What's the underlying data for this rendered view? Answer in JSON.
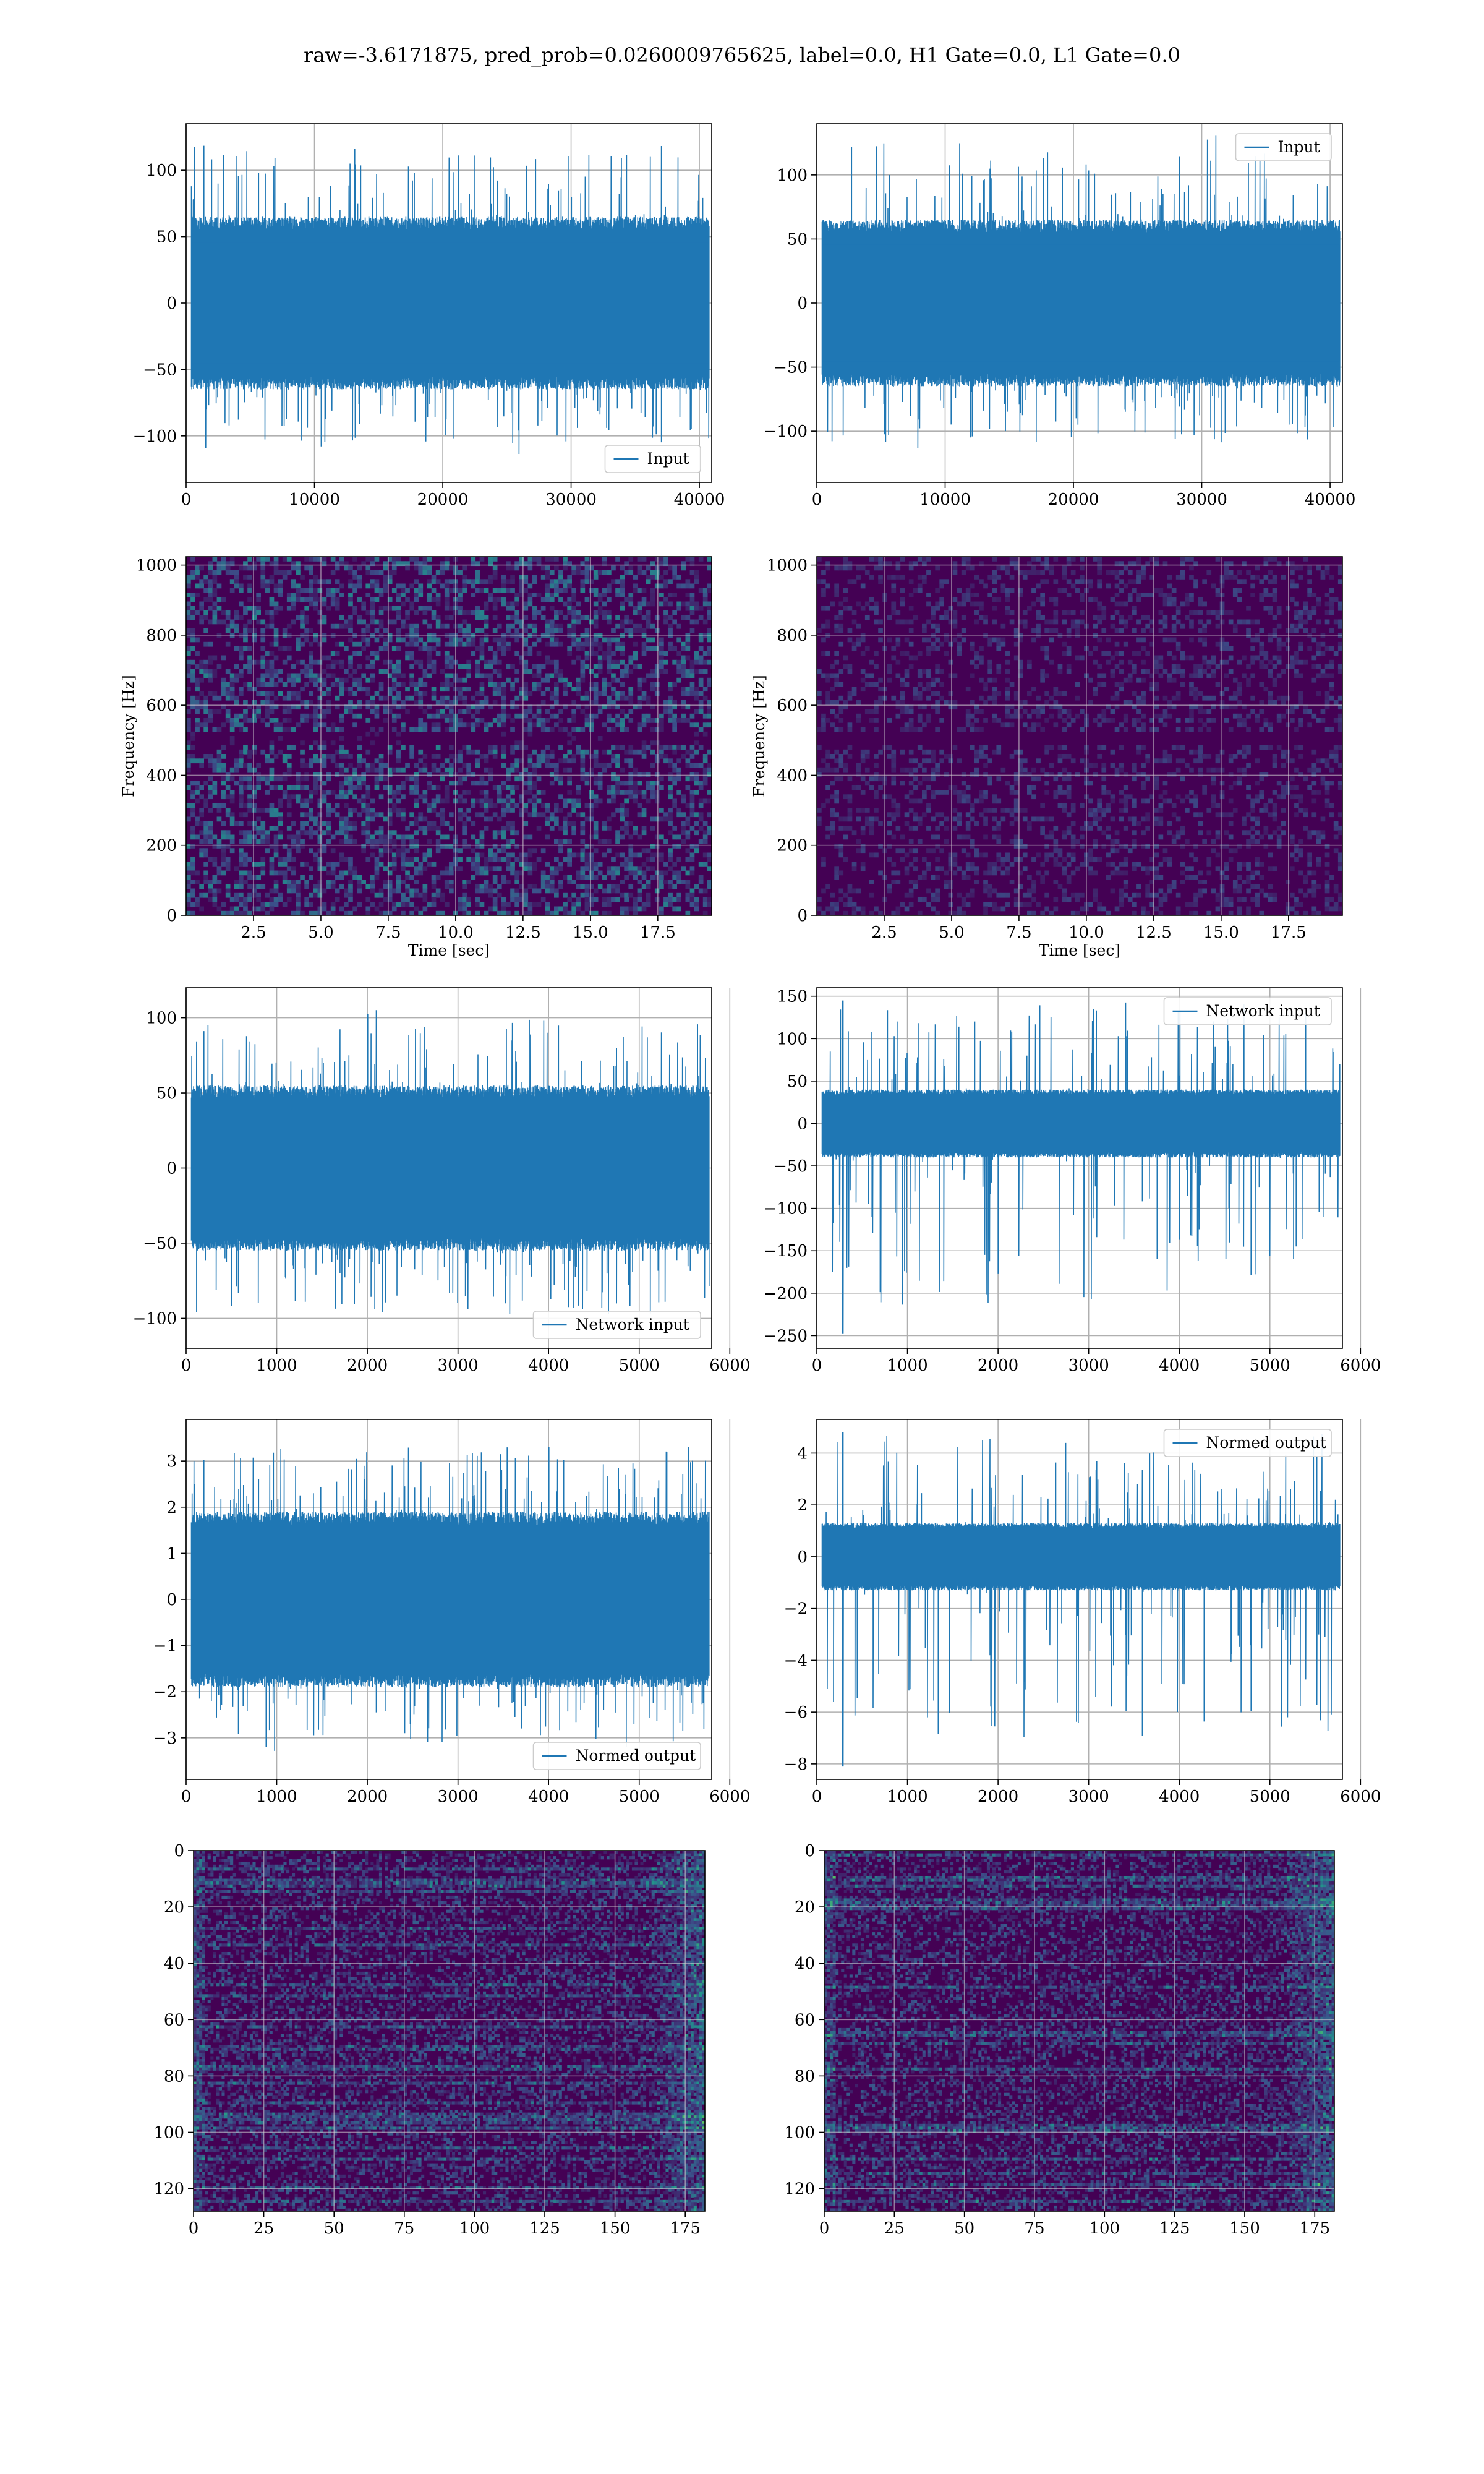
{
  "suptitle": "raw=-3.6171875, pred_prob=0.0260009765625, label=0.0, H1 Gate=0.0, L1 Gate=0.0",
  "colors": {
    "series": "#1f77b4",
    "grid": "#b0b0b0",
    "viridis_low": "#440154",
    "viridis_high": "#fde725"
  },
  "chart_data": [
    {
      "id": "r1c1",
      "type": "line",
      "x_range": [
        0,
        40960
      ],
      "ylim": [
        -135,
        135
      ],
      "xticks": [
        0,
        10000,
        20000,
        30000,
        40000
      ],
      "yticks": [
        -100,
        -50,
        0,
        50,
        100
      ],
      "xlabel": "",
      "ylabel": "",
      "series": [
        {
          "name": "Input",
          "envelope": 65,
          "peak_max": 123,
          "peak_min": -124
        }
      ],
      "legend": "lower-right",
      "grid": true
    },
    {
      "id": "r1c2",
      "type": "line",
      "x_range": [
        0,
        40960
      ],
      "ylim": [
        -140,
        140
      ],
      "xticks": [
        0,
        10000,
        20000,
        30000,
        40000
      ],
      "yticks": [
        -100,
        -50,
        0,
        50,
        100
      ],
      "xlabel": "",
      "ylabel": "",
      "series": [
        {
          "name": "Input",
          "envelope": 65,
          "peak_max": 133,
          "peak_min": -124
        }
      ],
      "legend": "upper-right",
      "grid": true
    },
    {
      "id": "r2c1",
      "type": "heatmap",
      "x_range": [
        0,
        19.5
      ],
      "ylim": [
        0,
        1024
      ],
      "xticks": [
        2.5,
        5.0,
        7.5,
        10.0,
        12.5,
        15.0,
        17.5
      ],
      "yticks": [
        0,
        200,
        400,
        600,
        800,
        1000
      ],
      "xlabel": "Time [sec]",
      "ylabel": "Frequency [Hz]",
      "colormap": "viridis",
      "grid": true
    },
    {
      "id": "r2c2",
      "type": "heatmap",
      "x_range": [
        0,
        19.5
      ],
      "ylim": [
        0,
        1024
      ],
      "xticks": [
        2.5,
        5.0,
        7.5,
        10.0,
        12.5,
        15.0,
        17.5
      ],
      "yticks": [
        0,
        200,
        400,
        600,
        800,
        1000
      ],
      "xlabel": "Time [sec]",
      "ylabel": "Frequency [Hz]",
      "colormap": "viridis",
      "grid": true
    },
    {
      "id": "r3c1",
      "type": "line",
      "x_range": [
        0,
        5800
      ],
      "ylim": [
        -120,
        120
      ],
      "xticks": [
        0,
        1000,
        2000,
        3000,
        4000,
        5000,
        6000
      ],
      "yticks": [
        -100,
        -50,
        0,
        50,
        100
      ],
      "xlabel": "",
      "ylabel": "",
      "series": [
        {
          "name": "Network input",
          "envelope": 55,
          "peak_max": 107,
          "peak_min": -110
        }
      ],
      "legend": "lower-right",
      "grid": true
    },
    {
      "id": "r3c2",
      "type": "line",
      "x_range": [
        0,
        5800
      ],
      "ylim": [
        -265,
        160
      ],
      "xticks": [
        0,
        1000,
        2000,
        3000,
        4000,
        5000,
        6000
      ],
      "yticks": [
        -250,
        -200,
        -150,
        -100,
        -50,
        0,
        50,
        100,
        150
      ],
      "xlabel": "",
      "ylabel": "",
      "series": [
        {
          "name": "Network input",
          "envelope": 40,
          "peak_max": 145,
          "peak_min": -248
        }
      ],
      "legend": "upper-right",
      "grid": true
    },
    {
      "id": "r4c1",
      "type": "line",
      "x_range": [
        0,
        5800
      ],
      "ylim": [
        -3.9,
        3.9
      ],
      "xticks": [
        0,
        1000,
        2000,
        3000,
        4000,
        5000,
        6000
      ],
      "yticks": [
        -3,
        -2,
        -1,
        0,
        1,
        2,
        3
      ],
      "xlabel": "",
      "ylabel": "",
      "series": [
        {
          "name": "Normed output",
          "envelope": 1.9,
          "peak_max": 3.45,
          "peak_min": -3.6
        }
      ],
      "legend": "lower-right",
      "grid": true
    },
    {
      "id": "r4c2",
      "type": "line",
      "x_range": [
        0,
        5800
      ],
      "ylim": [
        -8.6,
        5.3
      ],
      "xticks": [
        0,
        1000,
        2000,
        3000,
        4000,
        5000,
        6000
      ],
      "yticks": [
        -8,
        -6,
        -4,
        -2,
        0,
        2,
        4
      ],
      "xlabel": "",
      "ylabel": "",
      "series": [
        {
          "name": "Normed output",
          "envelope": 1.3,
          "peak_max": 4.8,
          "peak_min": -8.1
        }
      ],
      "legend": "upper-right",
      "grid": true
    },
    {
      "id": "r5c1",
      "type": "heatmap",
      "x_range": [
        0,
        182
      ],
      "ylim": [
        128,
        0
      ],
      "xticks": [
        0,
        25,
        50,
        75,
        100,
        125,
        150,
        175
      ],
      "yticks": [
        0,
        20,
        40,
        60,
        80,
        100,
        120
      ],
      "xlabel": "",
      "ylabel": "",
      "colormap": "viridis",
      "grid": true
    },
    {
      "id": "r5c2",
      "type": "heatmap",
      "x_range": [
        0,
        182
      ],
      "ylim": [
        128,
        0
      ],
      "xticks": [
        0,
        25,
        50,
        75,
        100,
        125,
        150,
        175
      ],
      "yticks": [
        0,
        20,
        40,
        60,
        80,
        100,
        120
      ],
      "xlabel": "",
      "ylabel": "",
      "colormap": "viridis",
      "grid": true
    }
  ]
}
